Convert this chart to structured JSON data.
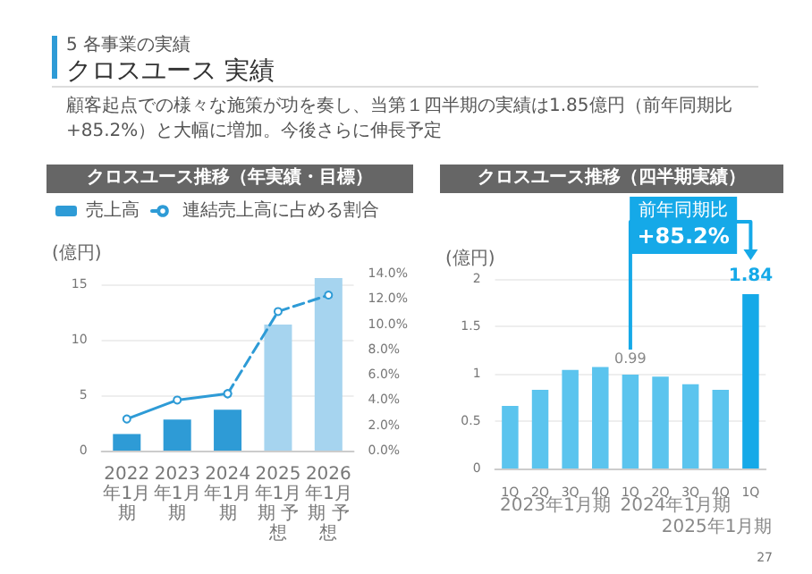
{
  "chart_data": [
    {
      "type": "other",
      "subtitle": "5 各事業の実績",
      "title": "クロスユース 実績",
      "annotations": [
        "顧客起点での様々な施策が功を奏し、当第１四半期の実績は1.85億円（前年同期比+85.2%）と大幅に増加。今後さらに伸長予定",
        "27"
      ]
    },
    {
      "type": "bar",
      "title": "クロスユース推移（年実績・目標）",
      "ylabel": "(億円)",
      "categories": [
        "2022年1月期",
        "2023年1月期",
        "2024年1月期",
        "2025年1月期 予想",
        "2026年1月期 予想"
      ],
      "series": [
        {
          "type": "bar",
          "name": "売上高",
          "colors": [
            "#2e9bd6",
            "#2e9bd6",
            "#2e9bd6",
            "#a6d4ef",
            "#a6d4ef"
          ],
          "values": [
            1.5,
            2.8,
            3.7,
            11.4,
            15.6
          ]
        },
        {
          "type": "line",
          "name": "連結売上高に占める割合",
          "axis": "y2",
          "color": "#2e9bd6",
          "line_style": "dashed",
          "values": [
            null,
            null,
            4.5,
            11.0,
            12.3
          ]
        },
        {
          "type": "line",
          "axis": "y2",
          "color": "#2e9bd6",
          "line_style": "solid",
          "values": [
            2.5,
            4.0,
            4.5,
            null,
            null
          ]
        }
      ],
      "ylim": [
        0,
        16
      ],
      "yticks": [
        0,
        5,
        10,
        15
      ],
      "y2lim": [
        0,
        14
      ],
      "y2ticks": [
        {
          "value": 0,
          "label": "0.0%"
        },
        {
          "value": 2,
          "label": "2.0%"
        },
        {
          "value": 4,
          "label": "4.0%"
        },
        {
          "value": 6,
          "label": "6.0%"
        },
        {
          "value": 8,
          "label": "8.0%"
        },
        {
          "value": 10,
          "label": "10.0%"
        },
        {
          "value": 12,
          "label": "12.0%"
        },
        {
          "value": 14,
          "label": "14.0%"
        }
      ],
      "grid": "y",
      "legend": "top left",
      "marker": "circle"
    },
    {
      "type": "bar",
      "title": "クロスユース推移（四半期実績）",
      "ylabel": "(億円)",
      "categories": [
        "1Q",
        "2Q",
        "3Q",
        "4Q",
        "1Q",
        "2Q",
        "3Q",
        "4Q",
        "1Q"
      ],
      "colors": [
        "#5bc4ee",
        "#5bc4ee",
        "#5bc4ee",
        "#5bc4ee",
        "#5bc4ee",
        "#5bc4ee",
        "#5bc4ee",
        "#5bc4ee",
        "#15a9e8"
      ],
      "values": [
        0.66,
        0.83,
        1.04,
        1.07,
        0.99,
        0.97,
        0.89,
        0.83,
        1.84
      ],
      "value_labels": [
        null,
        null,
        null,
        null,
        "0.99",
        null,
        null,
        null,
        "1.84"
      ],
      "ylim": [
        0,
        2
      ],
      "yticks": [
        0,
        0.5,
        1,
        1.5,
        2
      ],
      "grid": "y",
      "annotations": [
        "2023年1月期",
        "2024年1月期",
        "2025年1月期",
        "前年同期比",
        "+85.2%"
      ]
    }
  ]
}
